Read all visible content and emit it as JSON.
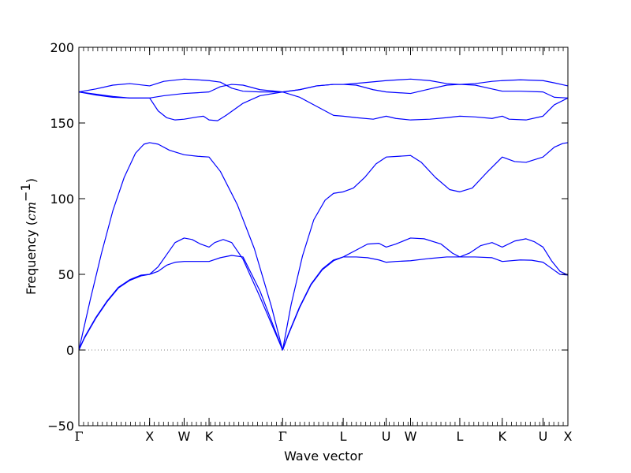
{
  "chart_data": {
    "type": "line",
    "title": "",
    "xlabel": "Wave vector",
    "ylabel": "Frequency",
    "ylabel_unit_base": "cm",
    "ylabel_unit_exp": "−1",
    "ylim": [
      -50,
      200
    ],
    "yticks": [
      -50,
      0,
      50,
      100,
      150,
      200
    ],
    "xlim": [
      0,
      8.64
    ],
    "grid": false,
    "zero_line": {
      "y": 0,
      "style": "dotted",
      "color": "#808080"
    },
    "line_color": "#0000ff",
    "x_ticks": [
      {
        "label": "Γ",
        "x": 0
      },
      {
        "label": "X",
        "x": 1.25
      },
      {
        "label": "W",
        "x": 1.86
      },
      {
        "label": "K",
        "x": 2.3
      },
      {
        "label": "Γ",
        "x": 3.6
      },
      {
        "label": "L",
        "x": 4.67
      },
      {
        "label": "U",
        "x": 5.43
      },
      {
        "label": "W",
        "x": 5.86
      },
      {
        "label": "L",
        "x": 6.73
      },
      {
        "label": "K",
        "x": 7.48
      },
      {
        "label": "U",
        "x": 8.2
      },
      {
        "label": "X",
        "x": 8.64
      }
    ],
    "series": [
      {
        "points": [
          [
            0,
            0
          ],
          [
            0.1,
            8
          ],
          [
            0.3,
            21
          ],
          [
            0.5,
            32
          ],
          [
            0.7,
            41
          ],
          [
            0.9,
            46
          ],
          [
            1.1,
            49
          ],
          [
            1.25,
            50
          ],
          [
            1.4,
            52
          ],
          [
            1.55,
            56
          ],
          [
            1.7,
            58
          ],
          [
            1.86,
            58.5
          ],
          [
            2.3,
            58.5
          ],
          [
            2.5,
            61
          ],
          [
            2.7,
            62.5
          ],
          [
            2.9,
            61.5
          ],
          [
            3.2,
            39
          ],
          [
            3.6,
            0
          ],
          [
            3.7,
            10
          ],
          [
            3.9,
            28
          ],
          [
            4.1,
            43
          ],
          [
            4.3,
            53
          ],
          [
            4.5,
            59
          ],
          [
            4.67,
            61.5
          ],
          [
            4.9,
            61.5
          ],
          [
            5.1,
            61
          ],
          [
            5.3,
            59.5
          ],
          [
            5.43,
            58
          ],
          [
            5.6,
            58.5
          ],
          [
            5.86,
            59
          ],
          [
            6.2,
            60.5
          ],
          [
            6.5,
            61.5
          ],
          [
            6.73,
            61.5
          ],
          [
            7.0,
            61.5
          ],
          [
            7.3,
            61
          ],
          [
            7.48,
            58.5
          ],
          [
            7.8,
            59.5
          ],
          [
            8.0,
            59.3
          ],
          [
            8.2,
            58
          ],
          [
            8.35,
            54
          ],
          [
            8.5,
            50
          ],
          [
            8.64,
            49.5
          ]
        ]
      },
      {
        "points": [
          [
            0,
            0
          ],
          [
            0.1,
            8.5
          ],
          [
            0.3,
            21.5
          ],
          [
            0.5,
            32.5
          ],
          [
            0.7,
            41.5
          ],
          [
            0.9,
            46.5
          ],
          [
            1.1,
            49.5
          ],
          [
            1.25,
            50
          ],
          [
            1.4,
            55
          ],
          [
            1.55,
            63
          ],
          [
            1.7,
            71
          ],
          [
            1.86,
            74
          ],
          [
            2.0,
            73
          ],
          [
            2.15,
            70
          ],
          [
            2.3,
            68
          ],
          [
            2.4,
            71
          ],
          [
            2.55,
            73
          ],
          [
            2.7,
            71
          ],
          [
            2.9,
            60
          ],
          [
            3.2,
            35
          ],
          [
            3.6,
            0
          ],
          [
            3.7,
            10.5
          ],
          [
            3.9,
            28.5
          ],
          [
            4.1,
            43.5
          ],
          [
            4.3,
            53.5
          ],
          [
            4.5,
            59.5
          ],
          [
            4.67,
            61.5
          ],
          [
            4.9,
            66
          ],
          [
            5.1,
            70
          ],
          [
            5.3,
            70.5
          ],
          [
            5.43,
            68
          ],
          [
            5.6,
            70
          ],
          [
            5.86,
            74
          ],
          [
            6.1,
            73.5
          ],
          [
            6.4,
            70
          ],
          [
            6.6,
            64
          ],
          [
            6.73,
            61.5
          ],
          [
            6.9,
            64
          ],
          [
            7.1,
            69
          ],
          [
            7.3,
            71
          ],
          [
            7.48,
            68
          ],
          [
            7.7,
            72
          ],
          [
            7.9,
            73.5
          ],
          [
            8.05,
            71.5
          ],
          [
            8.2,
            68
          ],
          [
            8.35,
            59
          ],
          [
            8.5,
            52
          ],
          [
            8.64,
            49.5
          ]
        ]
      },
      {
        "points": [
          [
            0,
            0
          ],
          [
            0.2,
            33
          ],
          [
            0.4,
            64
          ],
          [
            0.6,
            92
          ],
          [
            0.8,
            114
          ],
          [
            1.0,
            130
          ],
          [
            1.15,
            136
          ],
          [
            1.25,
            137
          ],
          [
            1.4,
            136
          ],
          [
            1.6,
            132
          ],
          [
            1.86,
            129
          ],
          [
            2.1,
            128
          ],
          [
            2.3,
            127.5
          ],
          [
            2.5,
            118
          ],
          [
            2.8,
            96
          ],
          [
            3.1,
            67
          ],
          [
            3.4,
            29
          ],
          [
            3.6,
            0
          ],
          [
            3.75,
            30
          ],
          [
            3.95,
            62
          ],
          [
            4.15,
            86
          ],
          [
            4.35,
            99
          ],
          [
            4.5,
            103.5
          ],
          [
            4.67,
            104.5
          ],
          [
            4.85,
            107
          ],
          [
            5.05,
            114
          ],
          [
            5.25,
            123
          ],
          [
            5.43,
            127.5
          ],
          [
            5.65,
            128
          ],
          [
            5.86,
            128.5
          ],
          [
            6.05,
            124
          ],
          [
            6.3,
            114
          ],
          [
            6.55,
            106
          ],
          [
            6.73,
            104.5
          ],
          [
            6.95,
            107
          ],
          [
            7.2,
            117
          ],
          [
            7.48,
            127.5
          ],
          [
            7.7,
            124.5
          ],
          [
            7.9,
            124
          ],
          [
            8.2,
            127.5
          ],
          [
            8.4,
            134
          ],
          [
            8.55,
            136.5
          ],
          [
            8.64,
            137
          ]
        ]
      },
      {
        "points": [
          [
            0,
            170.5
          ],
          [
            0.3,
            168.5
          ],
          [
            0.6,
            167
          ],
          [
            0.9,
            166.5
          ],
          [
            1.25,
            166.5
          ],
          [
            1.4,
            158
          ],
          [
            1.55,
            153.5
          ],
          [
            1.7,
            152
          ],
          [
            1.86,
            152.5
          ],
          [
            2.1,
            154
          ],
          [
            2.2,
            154.5
          ],
          [
            2.3,
            152
          ],
          [
            2.45,
            151.5
          ],
          [
            2.6,
            155
          ],
          [
            2.9,
            163
          ],
          [
            3.2,
            168
          ],
          [
            3.6,
            170.5
          ],
          [
            3.9,
            167
          ],
          [
            4.2,
            161
          ],
          [
            4.5,
            155
          ],
          [
            4.67,
            154.5
          ],
          [
            4.9,
            153.5
          ],
          [
            5.2,
            152.5
          ],
          [
            5.43,
            154.5
          ],
          [
            5.6,
            153
          ],
          [
            5.86,
            152
          ],
          [
            6.2,
            152.5
          ],
          [
            6.5,
            153.5
          ],
          [
            6.73,
            154.5
          ],
          [
            7.0,
            154
          ],
          [
            7.3,
            153
          ],
          [
            7.48,
            154.5
          ],
          [
            7.6,
            152.5
          ],
          [
            7.9,
            152
          ],
          [
            8.2,
            154.5
          ],
          [
            8.4,
            162
          ],
          [
            8.64,
            166.5
          ]
        ]
      },
      {
        "points": [
          [
            0,
            170.5
          ],
          [
            0.3,
            169
          ],
          [
            0.6,
            167.5
          ],
          [
            0.9,
            166.5
          ],
          [
            1.25,
            166.5
          ],
          [
            1.5,
            168
          ],
          [
            1.86,
            169.5
          ],
          [
            2.1,
            170
          ],
          [
            2.3,
            170.5
          ],
          [
            2.5,
            174
          ],
          [
            2.7,
            175.5
          ],
          [
            2.9,
            175
          ],
          [
            3.2,
            172
          ],
          [
            3.6,
            170.5
          ],
          [
            3.9,
            172
          ],
          [
            4.2,
            174.5
          ],
          [
            4.5,
            175.5
          ],
          [
            4.67,
            175.5
          ],
          [
            4.9,
            175
          ],
          [
            5.2,
            172
          ],
          [
            5.43,
            170.5
          ],
          [
            5.86,
            169.5
          ],
          [
            6.2,
            172.5
          ],
          [
            6.5,
            175
          ],
          [
            6.73,
            175.5
          ],
          [
            7.0,
            175
          ],
          [
            7.3,
            172.5
          ],
          [
            7.48,
            171
          ],
          [
            7.8,
            171
          ],
          [
            8.2,
            170.5
          ],
          [
            8.4,
            167
          ],
          [
            8.64,
            166.5
          ]
        ]
      },
      {
        "points": [
          [
            0,
            170.5
          ],
          [
            0.3,
            172.5
          ],
          [
            0.6,
            175
          ],
          [
            0.9,
            176
          ],
          [
            1.25,
            174.5
          ],
          [
            1.5,
            177.5
          ],
          [
            1.86,
            179
          ],
          [
            2.1,
            178.5
          ],
          [
            2.3,
            178
          ],
          [
            2.5,
            177
          ],
          [
            2.7,
            173
          ],
          [
            2.9,
            171
          ],
          [
            3.2,
            170.5
          ],
          [
            3.6,
            170.5
          ],
          [
            3.9,
            172
          ],
          [
            4.2,
            174.5
          ],
          [
            4.5,
            175.5
          ],
          [
            4.67,
            175.5
          ],
          [
            5.0,
            176.5
          ],
          [
            5.43,
            178
          ],
          [
            5.86,
            179
          ],
          [
            6.2,
            178
          ],
          [
            6.5,
            176
          ],
          [
            6.73,
            175.5
          ],
          [
            7.0,
            176
          ],
          [
            7.3,
            177.5
          ],
          [
            7.48,
            178
          ],
          [
            7.8,
            178.5
          ],
          [
            8.2,
            178
          ],
          [
            8.4,
            176.5
          ],
          [
            8.64,
            174.5
          ]
        ]
      }
    ]
  }
}
